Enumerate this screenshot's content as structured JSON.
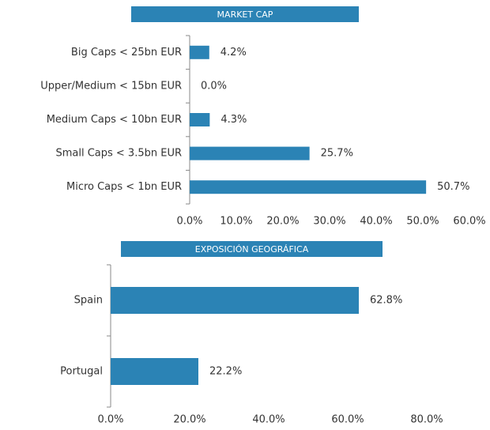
{
  "chart_data": [
    {
      "type": "hbar",
      "title": "MARKET CAP",
      "categories": [
        "Big Caps < 25bn EUR",
        "Upper/Medium < 15bn EUR",
        "Medium Caps < 10bn EUR",
        "Small Caps < 3.5bn EUR",
        "Micro Caps < 1bn EUR"
      ],
      "values": [
        4.2,
        0.0,
        4.3,
        25.7,
        50.7
      ],
      "value_labels": [
        "4.2%",
        "0.0%",
        "4.3%",
        "25.7%",
        "50.7%"
      ],
      "color": "#2b83b5",
      "xlim": [
        0,
        60
      ],
      "xticks": [
        {
          "value": 0,
          "label": "0.0%"
        },
        {
          "value": 10,
          "label": "10.0%"
        },
        {
          "value": 20,
          "label": "20.0%"
        },
        {
          "value": 30,
          "label": "30.0%"
        },
        {
          "value": 40,
          "label": "40.0%"
        },
        {
          "value": 50,
          "label": "50.0%"
        },
        {
          "value": 60,
          "label": "60.0%"
        }
      ]
    },
    {
      "type": "hbar",
      "title": "EXPOSICIÓN GEOGRÁFICA",
      "categories": [
        "Spain",
        "Portugal"
      ],
      "values": [
        62.8,
        22.2
      ],
      "value_labels": [
        "62.8%",
        "22.2%"
      ],
      "color": "#2b83b5",
      "xlim": [
        0,
        80
      ],
      "xticks": [
        {
          "value": 0,
          "label": "0.0%"
        },
        {
          "value": 20,
          "label": "20.0%"
        },
        {
          "value": 40,
          "label": "40.0%"
        },
        {
          "value": 60,
          "label": "60.0%"
        },
        {
          "value": 80,
          "label": "80.0%"
        }
      ]
    }
  ]
}
